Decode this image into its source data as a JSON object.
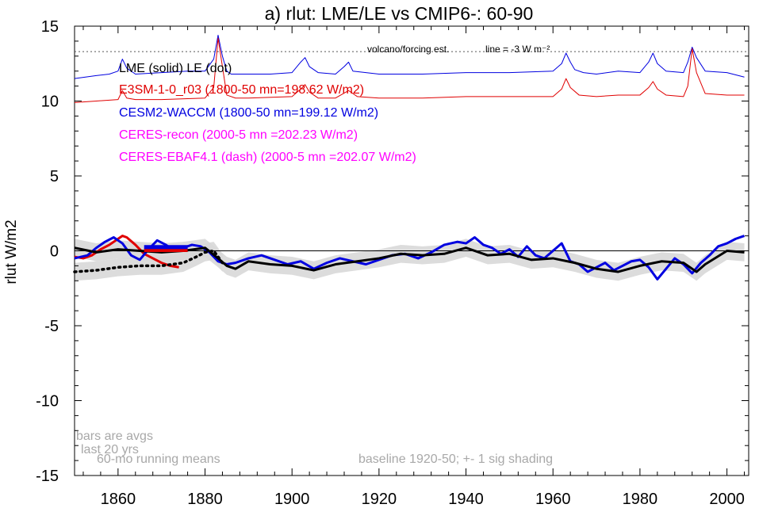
{
  "chart_data": {
    "type": "line",
    "title": "a) rlut: LME/LE vs CMIP6-: 60-90",
    "ylabel": "rlut W/m2",
    "xlim": [
      1850,
      2005
    ],
    "ylim": [
      -15,
      15
    ],
    "x_ticks": [
      1860,
      1880,
      1900,
      1920,
      1940,
      1960,
      1980,
      2000
    ],
    "y_ticks": [
      15,
      10,
      5,
      0,
      -5,
      -10,
      -15
    ],
    "x_tick_labels": [
      "1860",
      "1880",
      "1900",
      "1920",
      "1940",
      "1960",
      "1980",
      "2000"
    ],
    "y_tick_labels": [
      "15",
      "10",
      "5",
      "0",
      "-5",
      "-10",
      "-15"
    ],
    "legend": [
      {
        "text": "LME (solid)   LE (dot)",
        "color": "#000000"
      },
      {
        "text": "E3SM-1-0_r03 (1800-50 mn=198.62 W/m2)",
        "color": "#e00000"
      },
      {
        "text": "CESM2-WACCM (1800-50 mn=199.12 W/m2)",
        "color": "#0000e0"
      },
      {
        "text": "CERES-recon (2000-5 mn =202.23 W/m2)",
        "color": "#ff00ff"
      },
      {
        "text": "CERES-EBAF4.1 (dash) (2000-5 mn =202.07 W/m2)",
        "color": "#ff00ff"
      }
    ],
    "reference_line": {
      "y": 13.3,
      "label_left": "volcano/forcing est.",
      "label_right": "line = -3 W m⁻²"
    },
    "annotations": {
      "bars_note_1": "bars are avgs",
      "bars_note_2": "last 20 yrs",
      "running_means": "60-mo running means",
      "baseline": "baseline 1920-50; +- 1 sig shading"
    },
    "series": [
      {
        "name": "CESM2-WACCM volcano/forcing",
        "color": "#0000e0",
        "style": "thin",
        "x": [
          1850,
          1855,
          1858,
          1860,
          1861,
          1862,
          1864,
          1870,
          1876,
          1880,
          1882,
          1883,
          1884,
          1885,
          1886,
          1888,
          1890,
          1895,
          1900,
          1902,
          1903,
          1904,
          1906,
          1910,
          1912,
          1913,
          1914,
          1920,
          1930,
          1940,
          1950,
          1960,
          1962,
          1963,
          1964,
          1965,
          1967,
          1970,
          1975,
          1980,
          1982,
          1983,
          1984,
          1986,
          1990,
          1991,
          1992,
          1993,
          1995,
          2000,
          2004
        ],
        "y": [
          11.5,
          11.7,
          11.8,
          12.0,
          12.8,
          12.2,
          11.8,
          11.9,
          12.0,
          12.0,
          12.8,
          14.4,
          13.0,
          12.0,
          11.8,
          11.8,
          11.8,
          11.8,
          11.9,
          12.6,
          12.9,
          12.3,
          11.9,
          11.8,
          12.3,
          12.6,
          12.0,
          11.8,
          11.8,
          11.9,
          11.9,
          12.0,
          12.5,
          13.2,
          12.6,
          12.1,
          11.9,
          11.8,
          12.0,
          11.9,
          12.6,
          13.2,
          12.5,
          12.0,
          11.9,
          12.6,
          13.6,
          12.9,
          12.0,
          11.9,
          11.6
        ]
      },
      {
        "name": "E3SM-1-0_r03 volcano/forcing",
        "color": "#e00000",
        "style": "thin",
        "x": [
          1850,
          1855,
          1860,
          1861,
          1862,
          1864,
          1870,
          1880,
          1882,
          1883,
          1884,
          1885,
          1887,
          1890,
          1900,
          1902,
          1903,
          1904,
          1906,
          1910,
          1913,
          1915,
          1920,
          1930,
          1940,
          1950,
          1960,
          1962,
          1963,
          1964,
          1966,
          1970,
          1975,
          1980,
          1982,
          1983,
          1984,
          1986,
          1990,
          1991,
          1992,
          1993,
          1995,
          2000,
          2004
        ],
        "y": [
          9.9,
          10.0,
          10.1,
          10.7,
          10.2,
          10.1,
          10.1,
          10.2,
          10.9,
          14.2,
          12.3,
          10.4,
          10.2,
          10.2,
          10.3,
          10.8,
          11.1,
          10.6,
          10.2,
          10.2,
          10.7,
          10.3,
          10.2,
          10.2,
          10.3,
          10.3,
          10.3,
          10.8,
          11.5,
          10.9,
          10.4,
          10.3,
          10.4,
          10.4,
          10.9,
          11.3,
          10.8,
          10.4,
          10.3,
          11.0,
          13.5,
          11.9,
          10.5,
          10.4,
          10.4
        ]
      },
      {
        "name": "E3SM-1-0_r03",
        "color": "#e00000",
        "style": "thick",
        "x": [
          1850,
          1852,
          1854,
          1856,
          1858,
          1860,
          1861,
          1862,
          1864,
          1866,
          1868,
          1870,
          1872,
          1874
        ],
        "y": [
          -0.4,
          -0.5,
          -0.3,
          0.1,
          0.4,
          0.8,
          1.0,
          0.9,
          0.4,
          -0.2,
          -0.5,
          -0.8,
          -1.0,
          -1.1
        ]
      },
      {
        "name": "CESM2-WACCM",
        "color": "#0000e0",
        "style": "thick",
        "x": [
          1850,
          1853,
          1855,
          1857,
          1859,
          1861,
          1863,
          1865,
          1867,
          1869,
          1871,
          1873,
          1875,
          1877,
          1879,
          1881,
          1883,
          1885,
          1887,
          1890,
          1893,
          1896,
          1899,
          1902,
          1905,
          1908,
          1911,
          1914,
          1917,
          1920,
          1923,
          1926,
          1929,
          1932,
          1935,
          1938,
          1940,
          1942,
          1944,
          1946,
          1948,
          1950,
          1952,
          1954,
          1956,
          1958,
          1960,
          1962,
          1964,
          1966,
          1968,
          1970,
          1972,
          1974,
          1976,
          1978,
          1980,
          1982,
          1984,
          1986,
          1988,
          1990,
          1992,
          1994,
          1996,
          1998,
          2000,
          2002,
          2004
        ],
        "y": [
          -0.5,
          -0.3,
          0.2,
          0.6,
          0.9,
          0.5,
          -0.3,
          -0.6,
          0.1,
          0.7,
          0.4,
          0.0,
          0.2,
          0.4,
          0.3,
          -0.1,
          -0.7,
          -0.9,
          -0.8,
          -0.5,
          -0.3,
          -0.6,
          -0.9,
          -0.7,
          -1.2,
          -0.8,
          -0.5,
          -0.7,
          -0.9,
          -0.6,
          -0.3,
          -0.2,
          -0.5,
          -0.1,
          0.4,
          0.6,
          0.5,
          0.9,
          0.4,
          0.2,
          -0.2,
          0.1,
          -0.4,
          0.3,
          -0.3,
          -0.5,
          0.0,
          0.5,
          -0.7,
          -0.9,
          -1.4,
          -1.1,
          -0.8,
          -1.3,
          -1.0,
          -0.7,
          -0.6,
          -1.1,
          -1.9,
          -1.2,
          -0.5,
          -0.9,
          -1.5,
          -0.8,
          -0.3,
          0.3,
          0.5,
          0.8,
          1.0
        ]
      },
      {
        "name": "LME (solid)",
        "color": "#000000",
        "style": "thick",
        "x": [
          1850,
          1855,
          1860,
          1865,
          1870,
          1875,
          1880,
          1883,
          1885,
          1887,
          1890,
          1895,
          1900,
          1905,
          1910,
          1915,
          1920,
          1925,
          1930,
          1935,
          1940,
          1945,
          1950,
          1955,
          1960,
          1965,
          1970,
          1975,
          1980,
          1985,
          1990,
          1993,
          1995,
          2000,
          2004
        ],
        "y": [
          0.2,
          -0.1,
          0.1,
          0.0,
          -0.1,
          0.0,
          0.2,
          -0.5,
          -1.0,
          -1.2,
          -0.7,
          -0.9,
          -1.0,
          -1.3,
          -0.9,
          -0.7,
          -0.5,
          -0.2,
          -0.3,
          -0.2,
          0.2,
          -0.3,
          -0.2,
          -0.6,
          -0.5,
          -0.8,
          -1.2,
          -1.4,
          -1.0,
          -0.7,
          -0.8,
          -1.4,
          -0.9,
          0.0,
          -0.1
        ]
      },
      {
        "name": "LE (dot)",
        "color": "#000000",
        "style": "dot",
        "x": [
          1850,
          1855,
          1860,
          1865,
          1870,
          1875,
          1878,
          1880,
          1882,
          1884
        ],
        "y": [
          -1.4,
          -1.3,
          -1.1,
          -1.0,
          -1.0,
          -0.8,
          -0.4,
          -0.1,
          0.0,
          -0.8
        ]
      }
    ],
    "bars": [
      {
        "name": "E3SM-1-0_r03 avg",
        "color": "#e00000",
        "x": [
          1866,
          1876
        ],
        "y": 0.05
      },
      {
        "name": "CESM2-WACCM avg",
        "color": "#0000e0",
        "x": [
          1866,
          1876
        ],
        "y": 0.25
      }
    ],
    "shading": {
      "color": "#d8d8d8",
      "sigma": 0.6
    }
  }
}
